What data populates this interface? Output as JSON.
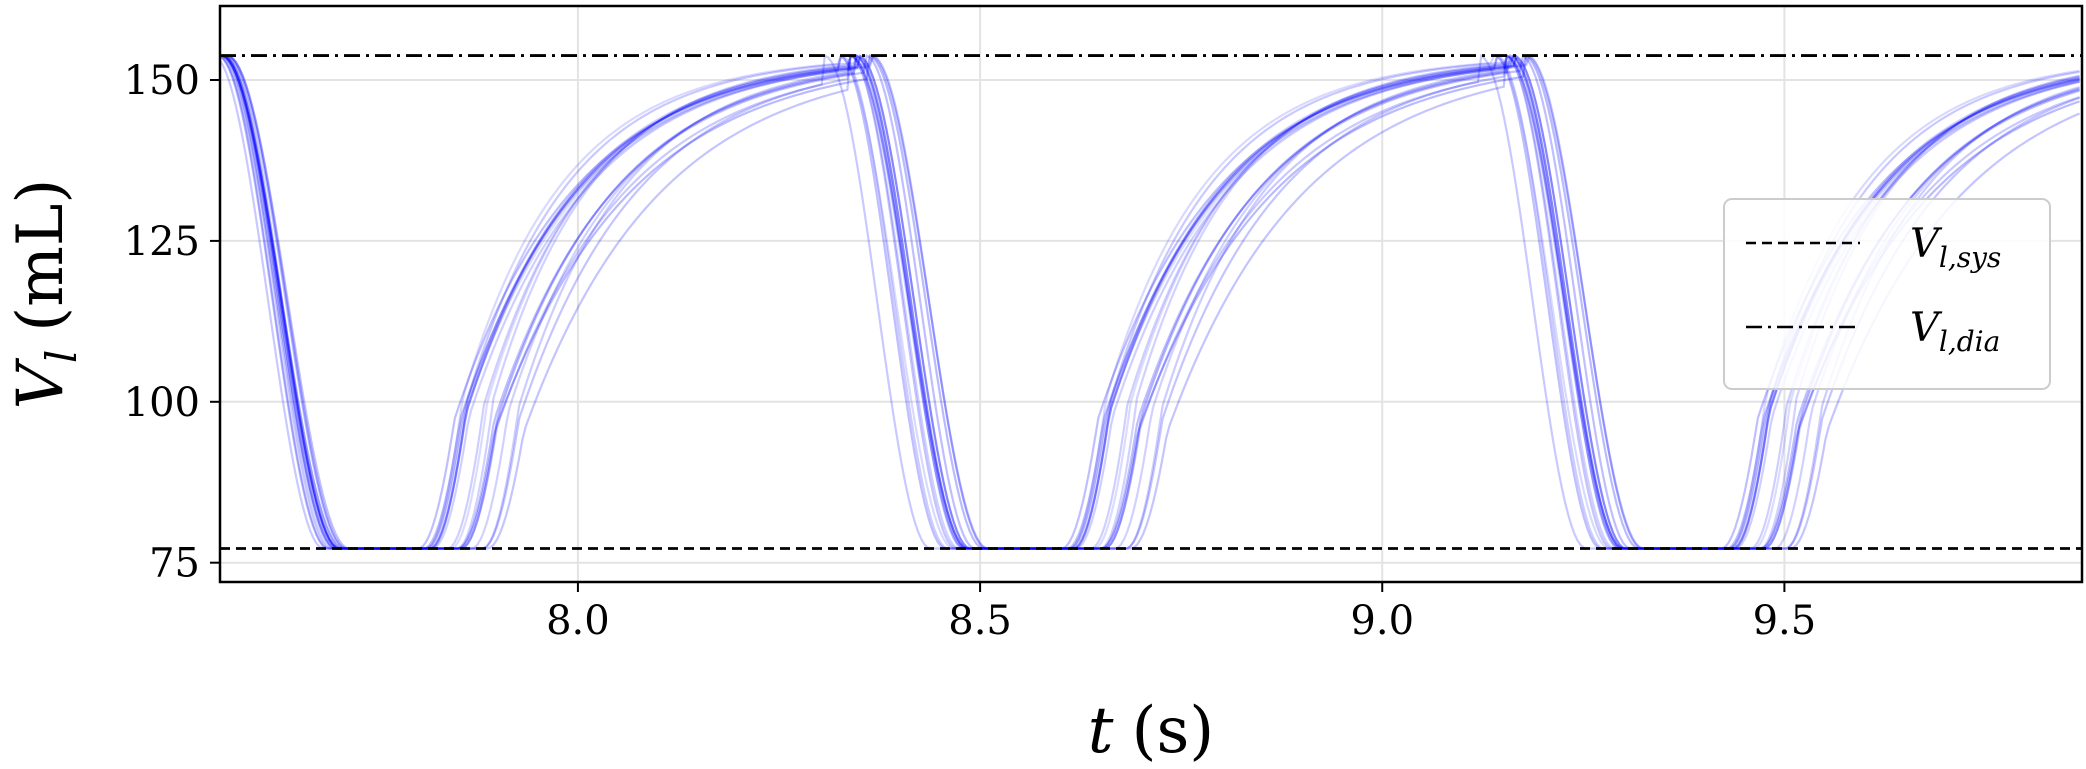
{
  "chart_data": {
    "type": "line",
    "title": "",
    "xlabel": {
      "var": "t",
      "unit": "(s)"
    },
    "ylabel": {
      "var": "V",
      "sub": "l",
      "unit": "(mL)"
    },
    "xlim": [
      7.555,
      9.87
    ],
    "ylim": [
      72,
      161.5
    ],
    "xticks": [
      8.0,
      8.5,
      9.0,
      9.5
    ],
    "xtick_labels": [
      "8.0",
      "8.5",
      "9.0",
      "9.5"
    ],
    "yticks": [
      75,
      100,
      125,
      150
    ],
    "ytick_labels": [
      "75",
      "100",
      "125",
      "150"
    ],
    "grid": true,
    "reference_lines": [
      {
        "name": "V_{l,sys}",
        "value": 77.2,
        "style": "dashed",
        "color": "#000000"
      },
      {
        "name": "V_{l,dia}",
        "value": 153.8,
        "style": "dashdot",
        "color": "#000000"
      }
    ],
    "legend": {
      "position": "center-right",
      "entries": [
        {
          "var": "V",
          "sub": "l,sys",
          "style": "dashed"
        },
        {
          "var": "V",
          "sub": "l,dia",
          "style": "dashdot"
        }
      ]
    },
    "ensemble": {
      "color": "#0000ff",
      "description_count": 20,
      "min_volume": 77.2,
      "max_volume": 153.8,
      "systole_starts": [
        7.555,
        8.335,
        9.15
      ],
      "systole_start_spread": 0.035,
      "systole_durations": [
        0.145,
        0.14,
        0.14
      ],
      "filling_starts": [
        7.8,
        8.6,
        9.42
      ],
      "filling_start_spread": 0.09,
      "filling_rise_time_constant": 0.14
    }
  }
}
